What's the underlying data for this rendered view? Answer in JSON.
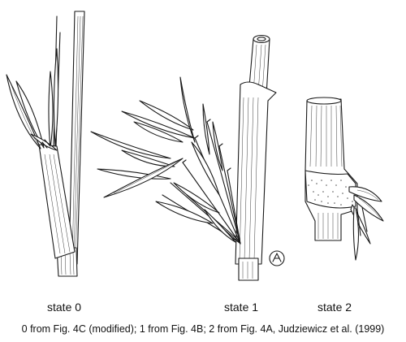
{
  "figure": {
    "states": [
      {
        "key": "state0",
        "label": "state 0"
      },
      {
        "key": "state1",
        "label": "state 1"
      },
      {
        "key": "state2",
        "label": "state 2"
      }
    ],
    "caption": "0 from Fig. 4C (modified); 1 from Fig. 4B; 2 from Fig. 4A, Judziewicz et al. (1999)"
  }
}
